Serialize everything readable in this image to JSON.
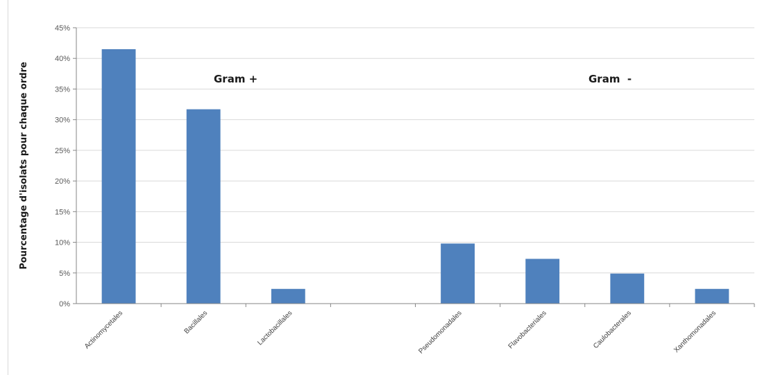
{
  "chart_data": {
    "type": "bar",
    "categories": [
      "Actinomycetales",
      "Bacillales",
      "Lactobacillales",
      "",
      "Pseudomonadales",
      "Flavobacteriales",
      "Caulobacterales",
      "Xanthomonadales"
    ],
    "values": [
      41.5,
      31.7,
      2.4,
      null,
      9.8,
      7.3,
      4.9,
      2.4
    ],
    "ylabel": "Pourcentage d'isolats pour chaque ordre",
    "xlabel": "",
    "ylim": [
      0,
      45
    ],
    "yticks": [
      0,
      5,
      10,
      15,
      20,
      25,
      30,
      35,
      40,
      45
    ],
    "ytick_labels": [
      "0%",
      "5%",
      "10%",
      "15%",
      "20%",
      "25%",
      "30%",
      "35%",
      "40%",
      "45%"
    ],
    "grid": true,
    "legend": "none",
    "bar_color": "#4f81bd",
    "annotations": [
      "Gram +",
      "Gram  -"
    ]
  }
}
